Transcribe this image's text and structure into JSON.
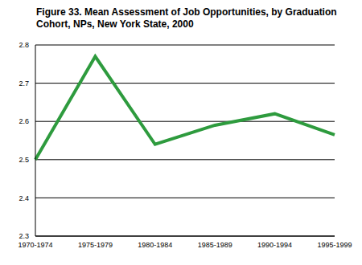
{
  "chart_data": {
    "type": "line",
    "title": "Figure 33.  Mean Assessment of Job Opportunities, by Graduation Cohort, NPs, New York State, 2000",
    "categories": [
      "1970-1974",
      "1975-1979",
      "1980-1984",
      "1985-1989",
      "1990-1994",
      "1995-1999"
    ],
    "values": [
      2.5,
      2.77,
      2.54,
      2.59,
      2.62,
      2.565
    ],
    "color": "#2e9b3e",
    "ylim": [
      2.3,
      2.8
    ],
    "yticks": [
      2.3,
      2.4,
      2.5,
      2.6,
      2.7,
      2.8
    ],
    "grid": true
  }
}
